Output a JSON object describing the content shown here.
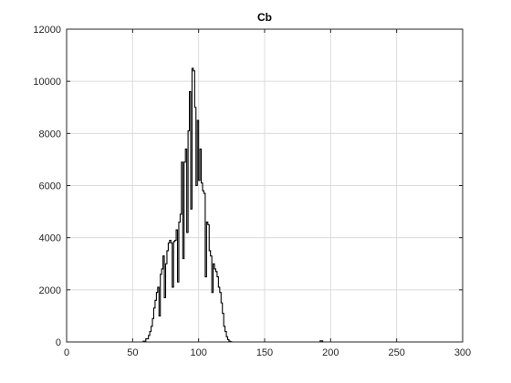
{
  "chart_data": {
    "type": "line",
    "title": "Cb",
    "xlabel": "",
    "ylabel": "",
    "xlim": [
      0,
      300
    ],
    "ylim": [
      0,
      12000
    ],
    "grid": true,
    "x_ticks": [
      0,
      50,
      100,
      150,
      200,
      250,
      300
    ],
    "y_ticks": [
      0,
      2000,
      4000,
      6000,
      8000,
      10000,
      12000
    ],
    "line_color": "#000000",
    "series": [
      {
        "style": "stairs",
        "x": [
          0,
          58,
          60,
          62,
          63,
          64,
          65,
          66,
          67,
          68,
          69,
          70,
          71,
          72,
          73,
          74,
          75,
          76,
          77,
          78,
          79,
          80,
          81,
          82,
          83,
          84,
          85,
          86,
          87,
          88,
          89,
          90,
          91,
          92,
          93,
          94,
          95,
          96,
          97,
          98,
          99,
          100,
          101,
          102,
          103,
          104,
          105,
          106,
          107,
          108,
          109,
          110,
          111,
          112,
          113,
          114,
          115,
          116,
          117,
          118,
          119,
          120,
          121,
          122,
          123,
          124,
          125,
          126,
          127,
          128,
          129,
          130,
          131,
          132,
          134,
          136,
          190,
          192,
          194,
          196,
          300
        ],
        "y": [
          0,
          30,
          120,
          250,
          400,
          600,
          900,
          1300,
          1600,
          1900,
          2100,
          1000,
          2600,
          2800,
          3300,
          1700,
          3000,
          3500,
          3800,
          3900,
          3800,
          2100,
          3850,
          3900,
          4300,
          2300,
          4600,
          4900,
          6900,
          3200,
          6900,
          7400,
          4200,
          8100,
          9600,
          5100,
          10500,
          10400,
          9000,
          6000,
          8500,
          6200,
          7400,
          6100,
          5800,
          5700,
          2500,
          4600,
          4500,
          3500,
          3300,
          1900,
          3000,
          2800,
          2700,
          2500,
          2100,
          1900,
          1500,
          1100,
          600,
          400,
          200,
          90,
          30,
          10,
          0,
          0,
          0,
          0,
          0,
          0,
          0,
          0,
          0,
          0,
          0,
          40,
          0,
          0,
          0
        ]
      }
    ]
  }
}
